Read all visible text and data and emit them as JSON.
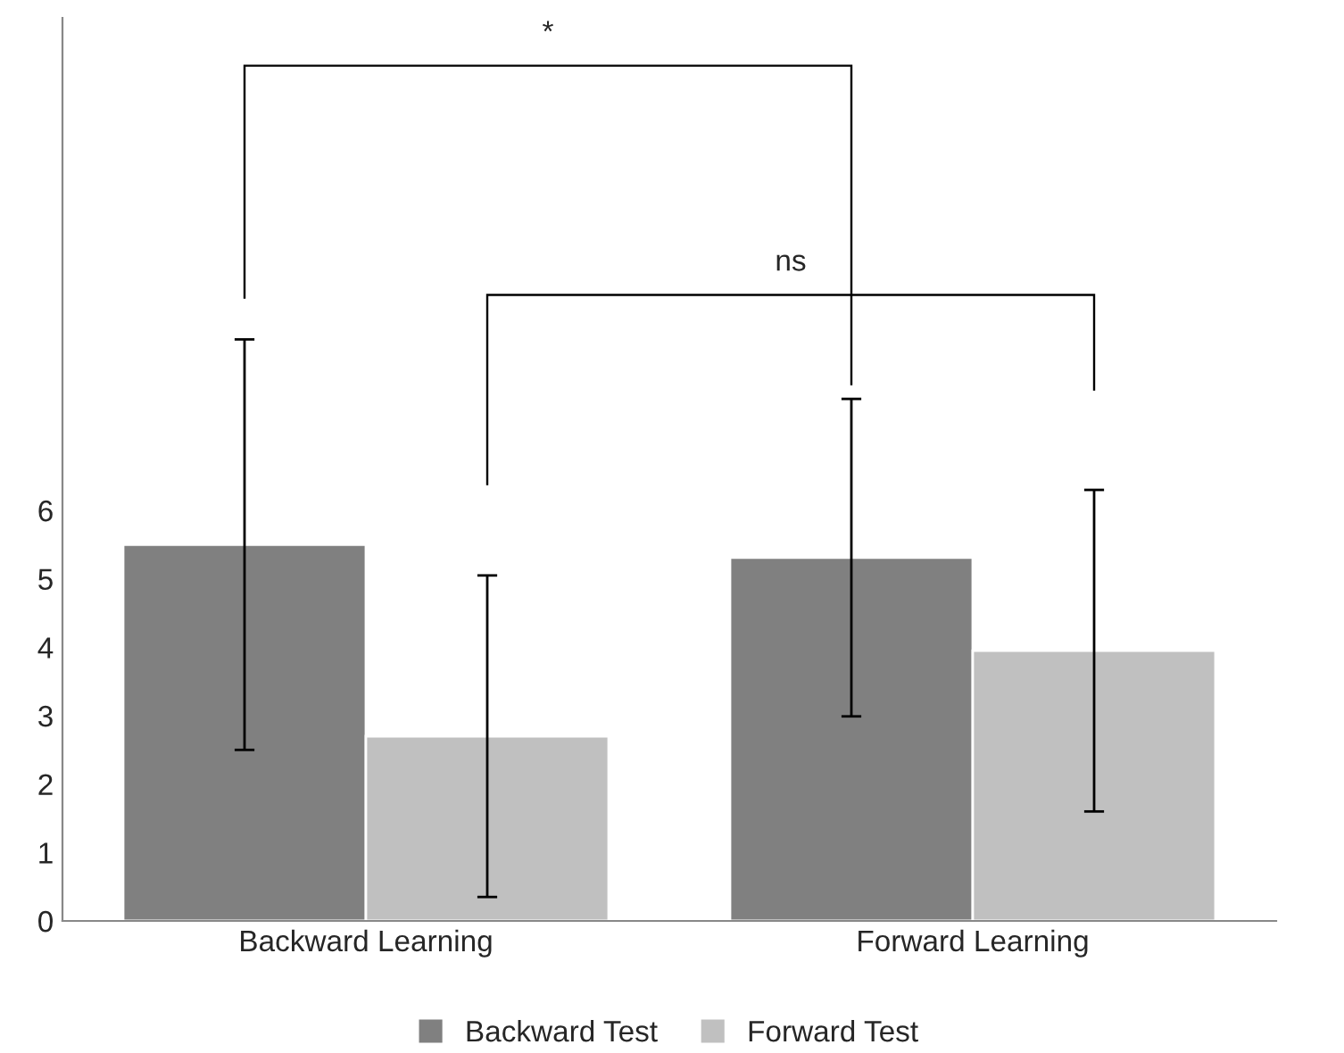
{
  "chart_data": {
    "type": "bar",
    "categories": [
      "Backward Learning",
      "Forward Learning"
    ],
    "series": [
      {
        "name": "Backward Test",
        "color": "#808080",
        "values": [
          5.5,
          5.31
        ],
        "errors": [
          3.0,
          2.32
        ]
      },
      {
        "name": "Forward Test",
        "color": "#c0c0c0",
        "values": [
          2.7,
          3.95
        ],
        "errors": [
          2.35,
          2.35
        ]
      }
    ],
    "ylim": [
      0,
      13.2
    ],
    "yticks": [
      0,
      1,
      2,
      3,
      4,
      5,
      6
    ],
    "grid": false,
    "legend": "bottom",
    "annotations": [
      "*",
      "ns"
    ]
  }
}
